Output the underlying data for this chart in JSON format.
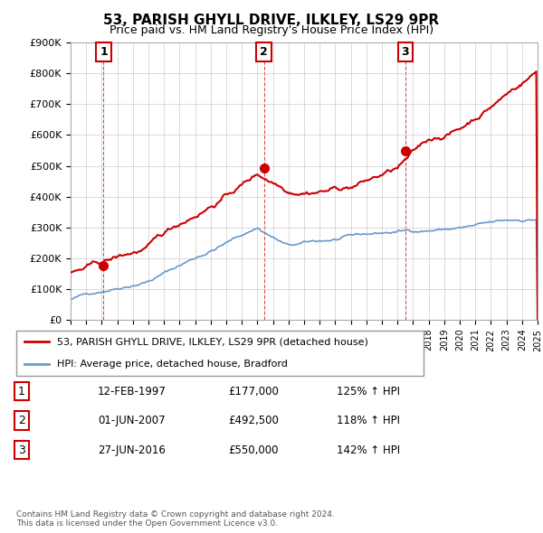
{
  "title": "53, PARISH GHYLL DRIVE, ILKLEY, LS29 9PR",
  "subtitle": "Price paid vs. HM Land Registry's House Price Index (HPI)",
  "xlim": [
    1995,
    2025
  ],
  "ylim": [
    0,
    900000
  ],
  "yticks": [
    0,
    100000,
    200000,
    300000,
    400000,
    500000,
    600000,
    700000,
    800000,
    900000
  ],
  "ytick_labels": [
    "£0",
    "£100K",
    "£200K",
    "£300K",
    "£400K",
    "£500K",
    "£600K",
    "£700K",
    "£800K",
    "£900K"
  ],
  "sale_dates": [
    1997.12,
    2007.42,
    2016.49
  ],
  "sale_prices": [
    177000,
    492500,
    550000
  ],
  "sale_labels": [
    "1",
    "2",
    "3"
  ],
  "sale_color": "#cc0000",
  "hpi_color": "#6699cc",
  "legend_entries": [
    "53, PARISH GHYLL DRIVE, ILKLEY, LS29 9PR (detached house)",
    "HPI: Average price, detached house, Bradford"
  ],
  "table_data": [
    [
      "1",
      "12-FEB-1997",
      "£177,000",
      "125% ↑ HPI"
    ],
    [
      "2",
      "01-JUN-2007",
      "£492,500",
      "118% ↑ HPI"
    ],
    [
      "3",
      "27-JUN-2016",
      "£550,000",
      "142% ↑ HPI"
    ]
  ],
  "footnote": "Contains HM Land Registry data © Crown copyright and database right 2024.\nThis data is licensed under the Open Government Licence v3.0.",
  "background_color": "#ffffff",
  "plot_bg_color": "#ffffff",
  "grid_color": "#cccccc"
}
